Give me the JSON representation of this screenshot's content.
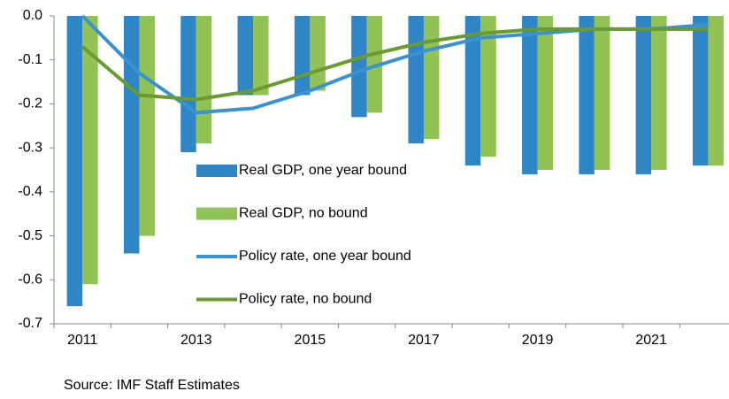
{
  "chart_data": {
    "type": "bar_line",
    "categories": [
      "2011",
      null,
      "2013",
      null,
      "2015",
      null,
      "2017",
      null,
      "2019",
      null,
      "2021",
      null
    ],
    "series": [
      {
        "name": "Real GDP, one year bound",
        "type": "bar",
        "color": "#2e86c6",
        "values": [
          -0.66,
          -0.54,
          -0.31,
          -0.18,
          -0.18,
          -0.23,
          -0.29,
          -0.34,
          -0.36,
          -0.36,
          -0.36,
          -0.34
        ]
      },
      {
        "name": "Real GDP, no bound",
        "type": "bar",
        "color": "#92c154",
        "values": [
          -0.61,
          -0.5,
          -0.29,
          -0.18,
          -0.17,
          -0.22,
          -0.28,
          -0.32,
          -0.35,
          -0.35,
          -0.35,
          -0.34
        ]
      },
      {
        "name": "Policy rate, one year bound",
        "type": "line",
        "color": "#3a92d2",
        "values": [
          0.0,
          -0.13,
          -0.22,
          -0.21,
          -0.17,
          -0.12,
          -0.08,
          -0.05,
          -0.04,
          -0.03,
          -0.03,
          -0.02
        ]
      },
      {
        "name": "Policy rate, no bound",
        "type": "line",
        "color": "#6b9a30",
        "values": [
          -0.07,
          -0.18,
          -0.19,
          -0.17,
          -0.13,
          -0.09,
          -0.06,
          -0.04,
          -0.03,
          -0.03,
          -0.03,
          -0.03
        ]
      }
    ],
    "ylim": [
      -0.7,
      0
    ],
    "yticks": [
      {
        "value": 0,
        "label": "0.0"
      },
      -0.1,
      -0.2,
      -0.3,
      -0.4,
      -0.5,
      -0.6,
      -0.7
    ],
    "grid": false,
    "legend": "center",
    "source": "Source: IMF Staff Estimates"
  }
}
